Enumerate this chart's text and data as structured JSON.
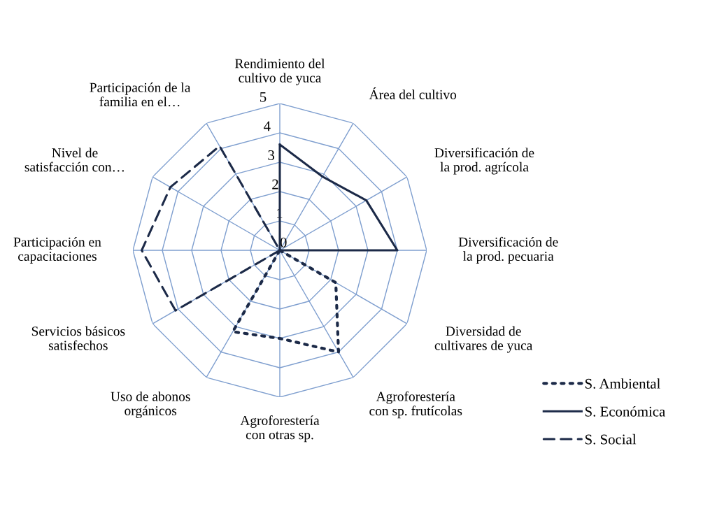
{
  "chart_data": {
    "type": "radar",
    "categories": [
      "Rendimiento del\ncultivo de yuca",
      "Área del cultivo",
      "Diversificación de\nla prod. agrícola",
      "Diversificación de\nla prod. pecuaria",
      "Diversidad de\ncultivares de yuca",
      "Agroforestería\ncon sp. frutícolas",
      "Agroforestería\ncon otras sp.",
      "Uso de abonos\norgánicos",
      "Servicios básicos\nsatisfechos",
      "Participación en\ncapacitaciones",
      "Nivel de\nsatisfacción con…",
      "Participación de la\nfamilia en el…"
    ],
    "series": [
      {
        "name": "S. Ambiental",
        "color": "#1c2a48",
        "line_style": "dotted",
        "values": [
          0,
          0,
          0,
          0,
          2.2,
          4.0,
          3.0,
          3.2,
          0,
          0,
          0,
          0
        ]
      },
      {
        "name": "S. Económica",
        "color": "#1c2a48",
        "line_style": "solid",
        "values": [
          3.6,
          2.9,
          3.4,
          4.0,
          0,
          0,
          0,
          0,
          0,
          0,
          0,
          0
        ]
      },
      {
        "name": "S. Social",
        "color": "#1c2a48",
        "line_style": "dashed",
        "values": [
          0,
          0,
          0,
          0,
          0,
          0,
          0,
          0,
          4.1,
          4.7,
          4.3,
          4.1
        ]
      }
    ],
    "ylim": [
      0,
      5
    ],
    "yticks": [
      0,
      1,
      2,
      3,
      4,
      5
    ],
    "grid": true,
    "legend": "right"
  }
}
